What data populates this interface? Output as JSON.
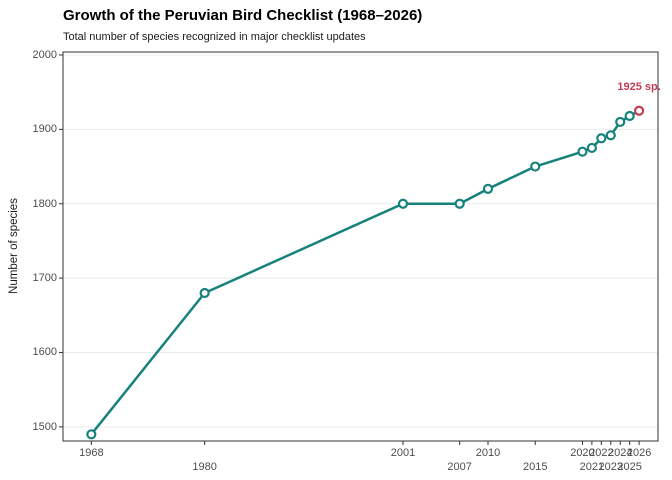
{
  "header": {
    "title": "Growth of the Peruvian Bird Checklist (1968–2026)",
    "subtitle": "Total number of species recognized in major checklist updates"
  },
  "chart_data": {
    "type": "line",
    "title": "Growth of the Peruvian Bird Checklist (1968–2026)",
    "subtitle": "Total number of species recognized in major checklist updates",
    "xlabel": "",
    "ylabel": "Number of species",
    "x": [
      1968,
      1980,
      2001,
      2007,
      2010,
      2015,
      2020,
      2021,
      2022,
      2023,
      2024,
      2025,
      2026
    ],
    "y": [
      1490,
      1680,
      1800,
      1800,
      1820,
      1850,
      1870,
      1875,
      1888,
      1892,
      1910,
      1918,
      1925
    ],
    "xlim": [
      1965,
      2028
    ],
    "ylim": [
      1481,
      2004
    ],
    "yticks": [
      1500,
      1600,
      1700,
      1800,
      1900,
      2000
    ],
    "xtick_rows": [
      1,
      2,
      1,
      2,
      1,
      2,
      1,
      2,
      1,
      2,
      1,
      2,
      1
    ],
    "grid": "horizontal-major-only",
    "legend": "none",
    "marker": "open-circle",
    "annotation": {
      "text": "1925 sp.",
      "x": 2026,
      "y": 1925,
      "offset_y": -24
    },
    "colors": {
      "line": "#17827C",
      "marker_fill": "#FFFFFF",
      "highlight": "#C43D54",
      "grid": "#EBEBEB",
      "ticks": "#333333",
      "panel_border": "#333333",
      "axis_text": "#4D4D4D"
    }
  }
}
